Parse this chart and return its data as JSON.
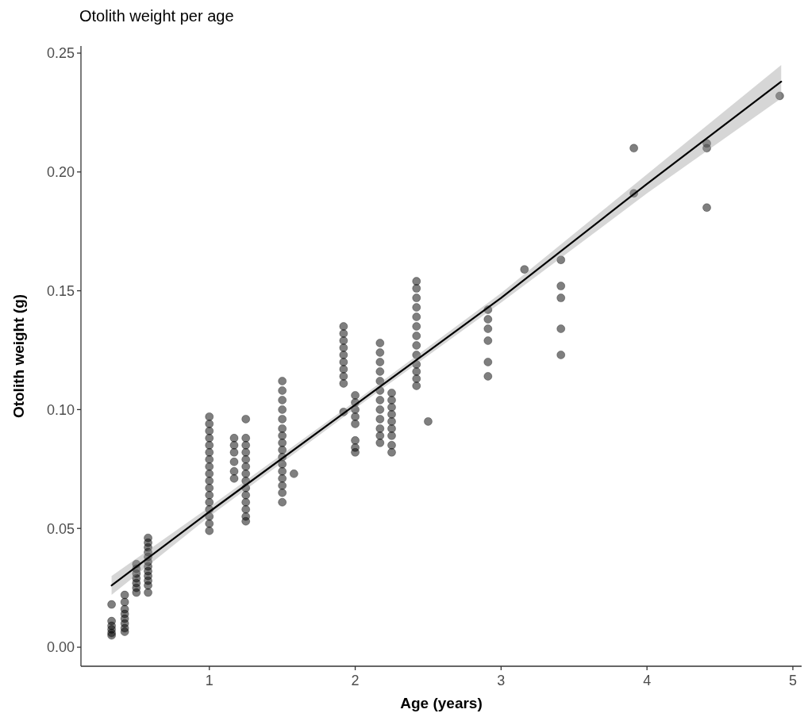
{
  "chart_data": {
    "type": "scatter",
    "title": "Otolith weight per age",
    "xlabel": "Age (years)",
    "ylabel": "Otolith weight (g)",
    "xlim": [
      0.12,
      5.06
    ],
    "ylim": [
      -0.008,
      0.253
    ],
    "xticks": [
      1,
      2,
      3,
      4,
      5
    ],
    "yticks": [
      {
        "value": 0,
        "label": "0.00"
      },
      {
        "value": 0.05,
        "label": "0.05"
      },
      {
        "value": 0.1,
        "label": "0.10"
      },
      {
        "value": 0.15,
        "label": "0.15"
      },
      {
        "value": 0.2,
        "label": "0.20"
      },
      {
        "value": 0.25,
        "label": "0.25"
      }
    ],
    "grid": false,
    "series": [
      {
        "marker": "circle",
        "color": "#000000",
        "x": [
          0.33,
          0.33,
          0.33,
          0.33,
          0.33,
          0.33,
          0.42,
          0.42,
          0.42,
          0.42,
          0.42,
          0.42,
          0.42,
          0.42,
          0.5,
          0.5,
          0.5,
          0.5,
          0.5,
          0.5,
          0.5,
          0.58,
          0.58,
          0.58,
          0.58,
          0.58,
          0.58,
          0.58,
          0.58,
          0.58,
          0.58,
          0.58,
          0.58,
          1,
          1,
          1,
          1,
          1,
          1,
          1,
          1,
          1,
          1,
          1,
          1,
          1,
          1,
          1,
          1,
          1,
          1.17,
          1.17,
          1.17,
          1.17,
          1.17,
          1.17,
          1.25,
          1.25,
          1.25,
          1.25,
          1.25,
          1.25,
          1.25,
          1.25,
          1.25,
          1.25,
          1.25,
          1.25,
          1.25,
          1.25,
          1.5,
          1.5,
          1.5,
          1.5,
          1.5,
          1.5,
          1.5,
          1.5,
          1.5,
          1.5,
          1.5,
          1.5,
          1.5,
          1.5,
          1.5,
          1.5,
          1.58,
          1.92,
          1.92,
          1.92,
          1.92,
          1.92,
          1.92,
          1.92,
          1.92,
          1.92,
          1.92,
          2,
          2,
          2,
          2,
          2,
          2,
          2,
          2,
          2.17,
          2.17,
          2.17,
          2.17,
          2.17,
          2.17,
          2.17,
          2.17,
          2.17,
          2.17,
          2.17,
          2.17,
          2.25,
          2.25,
          2.25,
          2.25,
          2.25,
          2.25,
          2.25,
          2.25,
          2.25,
          2.42,
          2.42,
          2.42,
          2.42,
          2.42,
          2.42,
          2.42,
          2.42,
          2.42,
          2.42,
          2.42,
          2.42,
          2.42,
          2.5,
          2.91,
          2.91,
          2.91,
          2.91,
          2.91,
          2.91,
          3.16,
          3.41,
          3.41,
          3.41,
          3.41,
          3.41,
          3.91,
          3.91,
          4.41,
          4.41,
          4.41,
          4.91
        ],
        "values": [
          0.018,
          0.011,
          0.009,
          0.0075,
          0.006,
          0.005,
          0.022,
          0.019,
          0.016,
          0.014,
          0.012,
          0.01,
          0.008,
          0.0065,
          0.035,
          0.033,
          0.031,
          0.029,
          0.027,
          0.025,
          0.023,
          0.046,
          0.044,
          0.042,
          0.04,
          0.038,
          0.036,
          0.034,
          0.032,
          0.03,
          0.028,
          0.026,
          0.023,
          0.097,
          0.094,
          0.091,
          0.088,
          0.085,
          0.082,
          0.079,
          0.076,
          0.073,
          0.07,
          0.067,
          0.064,
          0.061,
          0.058,
          0.055,
          0.052,
          0.049,
          0.088,
          0.085,
          0.082,
          0.078,
          0.074,
          0.071,
          0.096,
          0.088,
          0.085,
          0.082,
          0.079,
          0.076,
          0.073,
          0.07,
          0.067,
          0.064,
          0.061,
          0.058,
          0.055,
          0.053,
          0.112,
          0.108,
          0.104,
          0.1,
          0.096,
          0.092,
          0.089,
          0.086,
          0.083,
          0.08,
          0.077,
          0.074,
          0.071,
          0.068,
          0.065,
          0.061,
          0.073,
          0.135,
          0.132,
          0.129,
          0.126,
          0.123,
          0.12,
          0.117,
          0.114,
          0.111,
          0.099,
          0.106,
          0.103,
          0.1,
          0.097,
          0.094,
          0.087,
          0.084,
          0.082,
          0.128,
          0.124,
          0.12,
          0.116,
          0.112,
          0.108,
          0.104,
          0.1,
          0.096,
          0.092,
          0.089,
          0.086,
          0.107,
          0.104,
          0.101,
          0.098,
          0.095,
          0.092,
          0.089,
          0.085,
          0.082,
          0.154,
          0.151,
          0.147,
          0.143,
          0.139,
          0.135,
          0.131,
          0.127,
          0.123,
          0.119,
          0.116,
          0.113,
          0.11,
          0.095,
          0.142,
          0.138,
          0.134,
          0.129,
          0.12,
          0.114,
          0.159,
          0.163,
          0.152,
          0.147,
          0.134,
          0.123,
          0.21,
          0.191,
          0.212,
          0.21,
          0.185,
          0.232
        ]
      },
      {
        "type": "line",
        "color": "#000000",
        "x": [
          0.33,
          1,
          2,
          3,
          4,
          4.92
        ],
        "values": [
          0.026,
          0.057,
          0.102,
          0.147,
          0.195,
          0.238
        ],
        "lower": [
          0.022,
          0.055,
          0.1005,
          0.145,
          0.191,
          0.231
        ],
        "upper": [
          0.03,
          0.059,
          0.1035,
          0.149,
          0.199,
          0.245
        ]
      }
    ]
  }
}
